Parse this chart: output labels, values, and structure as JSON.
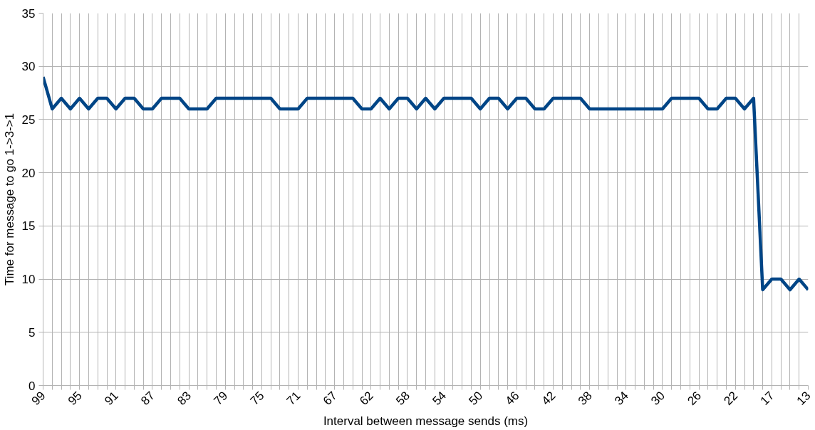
{
  "chart_data": {
    "type": "line",
    "xlabel": "Interval between message sends (ms)",
    "ylabel": "Time for message to go 1->3->1",
    "categories": [
      "99",
      null,
      null,
      null,
      "95",
      null,
      null,
      null,
      "91",
      null,
      null,
      null,
      "87",
      null,
      null,
      null,
      "83",
      null,
      null,
      null,
      "79",
      null,
      null,
      null,
      "75",
      null,
      null,
      null,
      "71",
      null,
      null,
      null,
      "67",
      null,
      null,
      null,
      "62",
      null,
      null,
      null,
      "58",
      null,
      null,
      null,
      "54",
      null,
      null,
      null,
      "50",
      null,
      null,
      null,
      "46",
      null,
      null,
      null,
      "42",
      null,
      null,
      null,
      "38",
      null,
      null,
      null,
      "34",
      null,
      null,
      null,
      "30",
      null,
      null,
      null,
      "26",
      null,
      null,
      null,
      "22",
      null,
      null,
      null,
      "17",
      null,
      null,
      null,
      "13"
    ],
    "series": [
      {
        "color": "#004586",
        "values": [
          29,
          26,
          27,
          26,
          27,
          26,
          27,
          27,
          26,
          27,
          27,
          26,
          26,
          27,
          27,
          27,
          26,
          26,
          26,
          27,
          27,
          27,
          27,
          27,
          27,
          27,
          26,
          26,
          26,
          27,
          27,
          27,
          27,
          27,
          27,
          26,
          26,
          27,
          26,
          27,
          27,
          26,
          27,
          26,
          27,
          27,
          27,
          27,
          26,
          27,
          27,
          26,
          27,
          27,
          26,
          26,
          27,
          27,
          27,
          27,
          26,
          26,
          26,
          26,
          26,
          26,
          26,
          26,
          26,
          27,
          27,
          27,
          27,
          26,
          26,
          27,
          27,
          26,
          27,
          9,
          10,
          10,
          9,
          10,
          9
        ]
      }
    ],
    "ylim": [
      0,
      35
    ],
    "yticks": [
      0,
      5,
      10,
      15,
      20,
      25,
      30,
      35
    ],
    "grid": true,
    "marker": "none",
    "line_style": "solid"
  }
}
